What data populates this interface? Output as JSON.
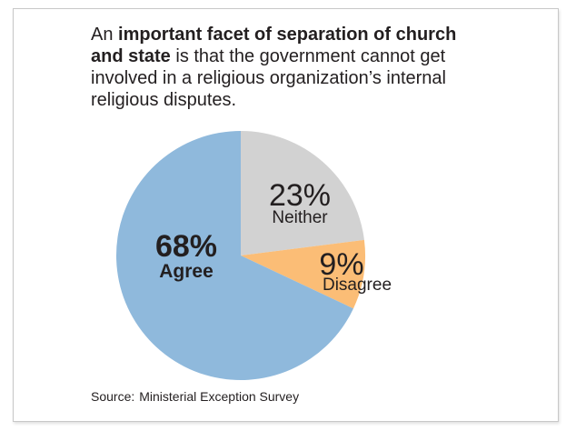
{
  "headline": {
    "prefix": "An ",
    "bold": "important facet of separation of church and state",
    "suffix": " is that the government cannot get involved in a religious organization’s internal religious disputes."
  },
  "source": {
    "label": "Source:",
    "value": "Ministerial Exception Survey"
  },
  "chart_data": {
    "type": "pie",
    "title": "",
    "start_angle_deg": 0,
    "direction": "clockwise",
    "slices": [
      {
        "name": "Neither",
        "value": 23,
        "label": "23%",
        "color": "#d2d2d2",
        "emphasis": false
      },
      {
        "name": "Disagree",
        "value": 9,
        "label": "9%",
        "color": "#fbbd76",
        "emphasis": false
      },
      {
        "name": "Agree",
        "value": 68,
        "label": "68%",
        "color": "#8fb9dc",
        "emphasis": true
      }
    ]
  }
}
